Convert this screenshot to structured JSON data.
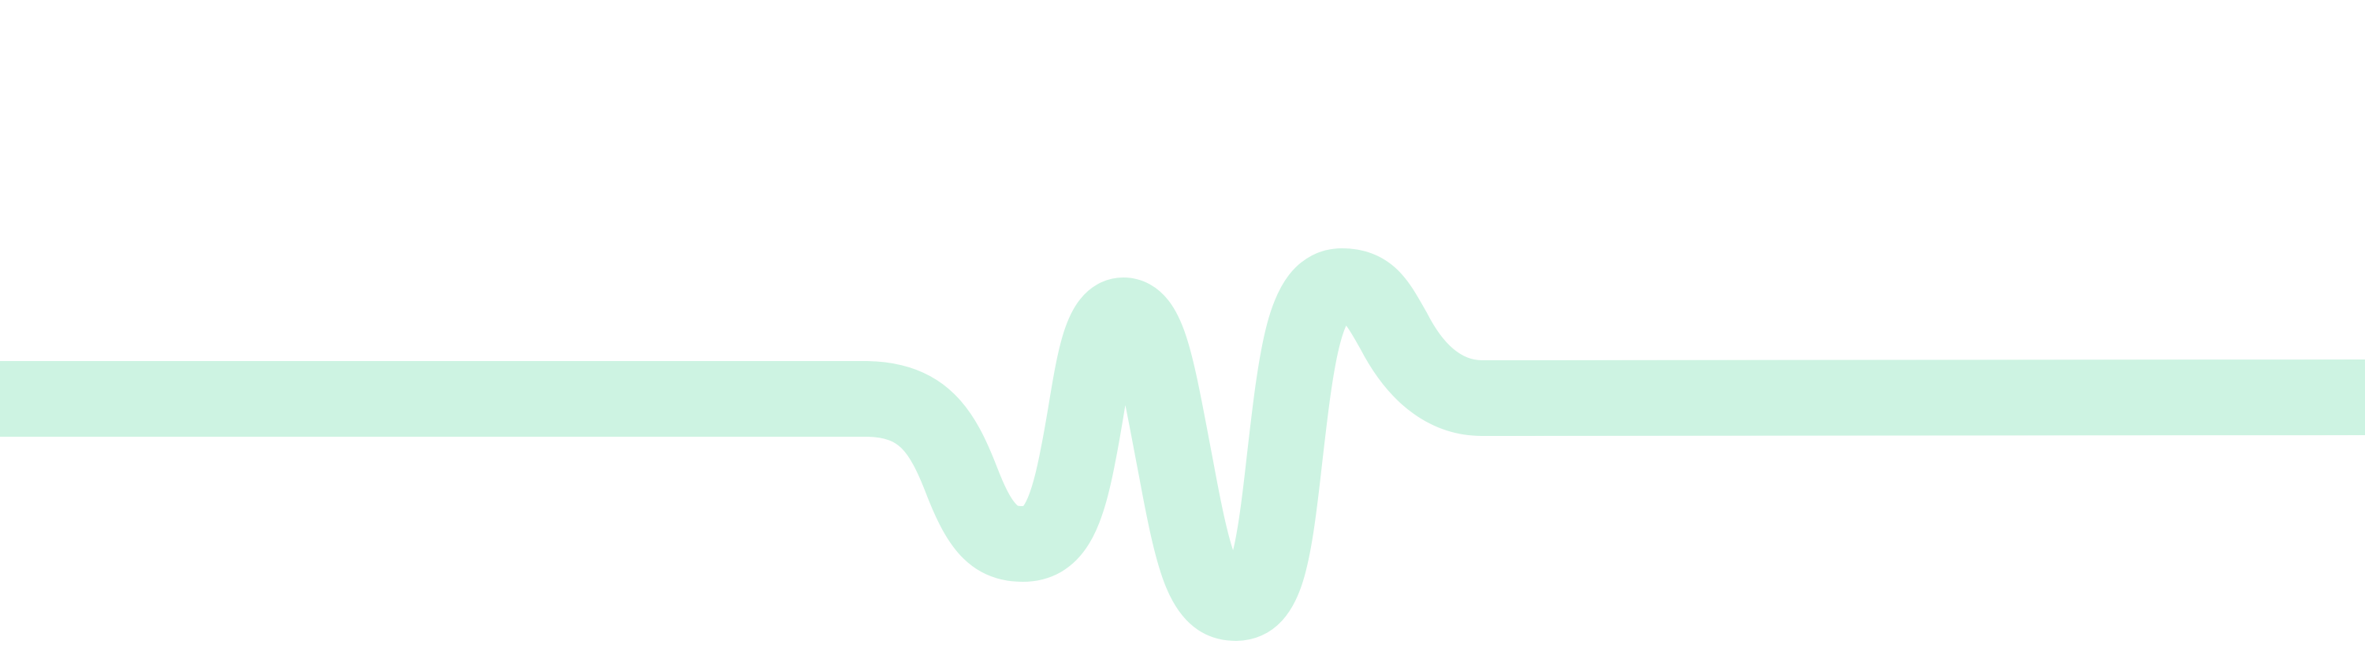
{
  "graphic": {
    "name": "heartbeat-wave",
    "color": "#cdf3e2",
    "background": "#ffffff"
  }
}
